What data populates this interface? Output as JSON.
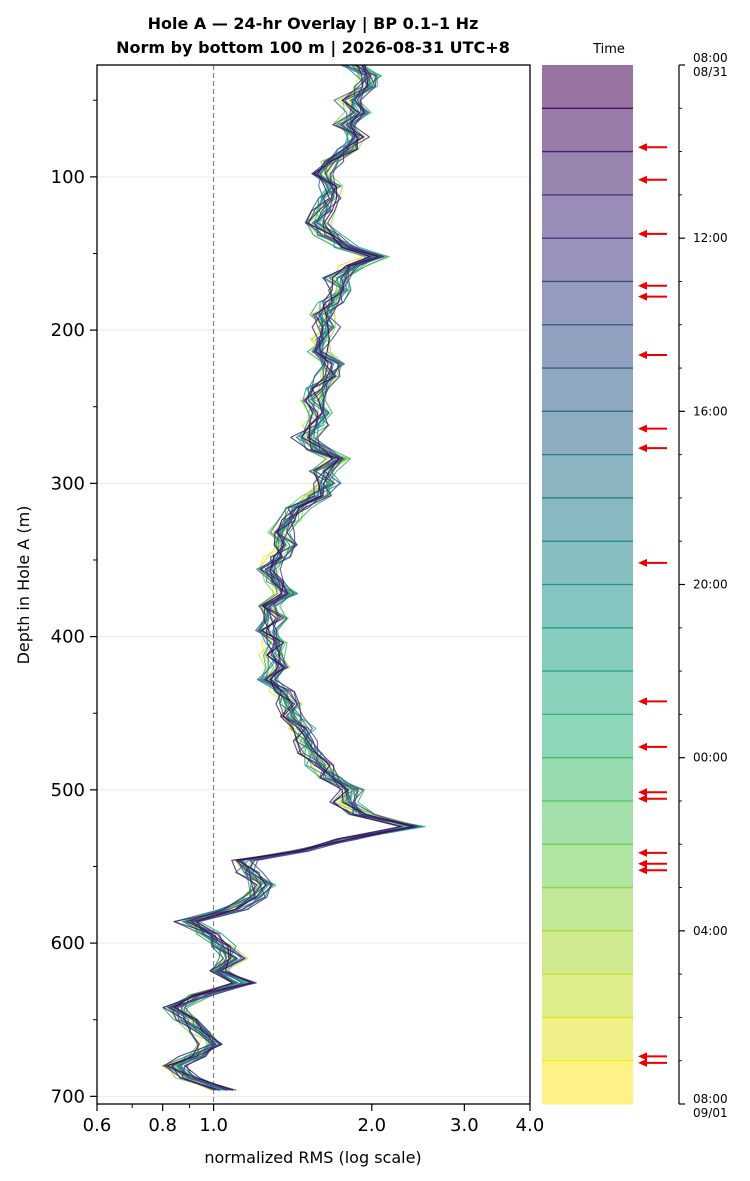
{
  "chart_data": {
    "type": "line",
    "title_line1": "Hole A — 24-hr Overlay  |  BP 0.1–1 Hz",
    "title_line2": "Norm by bottom 100 m  |  2026-08-31 UTC+8",
    "xlabel": "normalized RMS  (log scale)",
    "ylabel": "Depth in Hole A (m)",
    "x_scale": "log",
    "xlim": [
      0.6,
      4.0
    ],
    "ylim": [
      705,
      27
    ],
    "y_inverted": true,
    "x_ticks": [
      {
        "value": 0.6,
        "label": "0.6"
      },
      {
        "value": 0.8,
        "label": "0.8"
      },
      {
        "value": 1.0,
        "label": "1.0"
      },
      {
        "value": 2.0,
        "label": "2.0"
      },
      {
        "value": 3.0,
        "label": "3.0"
      },
      {
        "value": 4.0,
        "label": "4.0"
      }
    ],
    "y_ticks": [
      {
        "value": 100,
        "label": "100"
      },
      {
        "value": 200,
        "label": "200"
      },
      {
        "value": 300,
        "label": "300"
      },
      {
        "value": 400,
        "label": "400"
      },
      {
        "value": 500,
        "label": "500"
      },
      {
        "value": 600,
        "label": "600"
      },
      {
        "value": 700,
        "label": "700"
      }
    ],
    "reference_line_x": 1.0,
    "grid": "horizontal",
    "series_count": 24,
    "colormap": [
      "#fde725",
      "#b5de2b",
      "#6ece58",
      "#35b779",
      "#1f9e89",
      "#26828e",
      "#31688e",
      "#3e4989",
      "#482878",
      "#440154"
    ],
    "depth_profile": [
      [
        27,
        1.85
      ],
      [
        34,
        1.98
      ],
      [
        41,
        1.95
      ],
      [
        50,
        1.82
      ],
      [
        58,
        1.9
      ],
      [
        66,
        1.78
      ],
      [
        74,
        1.9
      ],
      [
        82,
        1.82
      ],
      [
        90,
        1.68
      ],
      [
        98,
        1.62
      ],
      [
        106,
        1.7
      ],
      [
        114,
        1.65
      ],
      [
        122,
        1.63
      ],
      [
        130,
        1.58
      ],
      [
        138,
        1.66
      ],
      [
        146,
        1.8
      ],
      [
        152,
        2.05
      ],
      [
        158,
        1.85
      ],
      [
        166,
        1.72
      ],
      [
        174,
        1.75
      ],
      [
        182,
        1.68
      ],
      [
        190,
        1.62
      ],
      [
        198,
        1.65
      ],
      [
        206,
        1.6
      ],
      [
        214,
        1.58
      ],
      [
        222,
        1.7
      ],
      [
        230,
        1.65
      ],
      [
        238,
        1.6
      ],
      [
        246,
        1.55
      ],
      [
        254,
        1.6
      ],
      [
        262,
        1.58
      ],
      [
        270,
        1.5
      ],
      [
        278,
        1.58
      ],
      [
        284,
        1.75
      ],
      [
        292,
        1.62
      ],
      [
        300,
        1.65
      ],
      [
        308,
        1.58
      ],
      [
        316,
        1.45
      ],
      [
        324,
        1.4
      ],
      [
        332,
        1.36
      ],
      [
        340,
        1.38
      ],
      [
        348,
        1.33
      ],
      [
        356,
        1.28
      ],
      [
        364,
        1.32
      ],
      [
        372,
        1.38
      ],
      [
        380,
        1.28
      ],
      [
        388,
        1.32
      ],
      [
        396,
        1.26
      ],
      [
        404,
        1.32
      ],
      [
        412,
        1.3
      ],
      [
        420,
        1.33
      ],
      [
        428,
        1.27
      ],
      [
        436,
        1.35
      ],
      [
        444,
        1.4
      ],
      [
        452,
        1.42
      ],
      [
        460,
        1.48
      ],
      [
        468,
        1.5
      ],
      [
        476,
        1.52
      ],
      [
        484,
        1.6
      ],
      [
        492,
        1.66
      ],
      [
        500,
        1.84
      ],
      [
        508,
        1.78
      ],
      [
        516,
        1.92
      ],
      [
        524,
        2.4
      ],
      [
        532,
        1.8
      ],
      [
        540,
        1.45
      ],
      [
        546,
        1.15
      ],
      [
        554,
        1.18
      ],
      [
        562,
        1.25
      ],
      [
        570,
        1.2
      ],
      [
        578,
        1.1
      ],
      [
        586,
        0.9
      ],
      [
        594,
        0.98
      ],
      [
        602,
        1.05
      ],
      [
        610,
        1.1
      ],
      [
        618,
        1.03
      ],
      [
        626,
        1.15
      ],
      [
        634,
        0.95
      ],
      [
        642,
        0.85
      ],
      [
        650,
        0.9
      ],
      [
        658,
        0.95
      ],
      [
        666,
        1.0
      ],
      [
        674,
        0.92
      ],
      [
        680,
        0.85
      ],
      [
        688,
        0.9
      ],
      [
        696,
        1.05
      ]
    ],
    "colorbar": {
      "label": "Time",
      "ticks": [
        {
          "hour": 0,
          "label": "08:00",
          "sublabel": "08/31"
        },
        {
          "hour": 4,
          "label": "12:00",
          "sublabel": ""
        },
        {
          "hour": 8,
          "label": "16:00",
          "sublabel": ""
        },
        {
          "hour": 12,
          "label": "20:00",
          "sublabel": ""
        },
        {
          "hour": 16,
          "label": "00:00",
          "sublabel": ""
        },
        {
          "hour": 20,
          "label": "04:00",
          "sublabel": ""
        },
        {
          "hour": 24,
          "label": "08:00",
          "sublabel": "09/01"
        }
      ],
      "arrow_hours": [
        1.9,
        2.65,
        3.9,
        5.1,
        5.35,
        6.7,
        8.4,
        8.85,
        11.5,
        14.7,
        15.75,
        16.8,
        16.95,
        18.2,
        18.45,
        18.6,
        22.9,
        23.05
      ]
    }
  }
}
